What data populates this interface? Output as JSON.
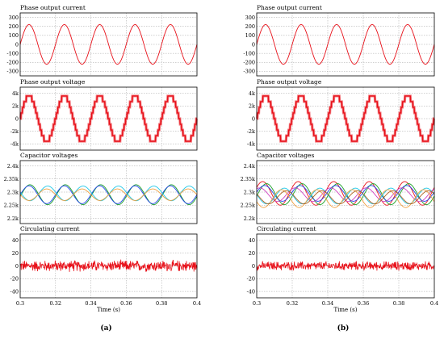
{
  "figure": {
    "panel_labels": [
      "(a)",
      "(b)"
    ],
    "xlabel": "Time (s)"
  },
  "colors": {
    "frame": "#000000",
    "grid": "#a0a0a0",
    "red": "#e8111a",
    "green": "#1aa025",
    "blue": "#2244ee",
    "cyan": "#20c8e8",
    "orange": "#f0a040",
    "brown": "#b06020",
    "magenta": "#d040c0"
  },
  "chart_data": [
    {
      "type": "line",
      "panel": "(a)",
      "title": "Phase output current",
      "xlim": [
        0.3,
        0.4
      ],
      "ylim": [
        -350,
        350
      ],
      "yticks": [
        300,
        200,
        100,
        0,
        -100,
        -200,
        -300
      ],
      "ytick_labels": [
        "300",
        "200",
        "100",
        "0",
        "-100",
        "-200",
        "-300"
      ],
      "series": [
        {
          "color": "red",
          "waveform": "sine",
          "amplitude": 220,
          "offset": 0,
          "frequency_hz": 50,
          "phase_deg": 0
        }
      ]
    },
    {
      "type": "line",
      "panel": "(a)",
      "title": "Phase output voltage",
      "xlim": [
        0.3,
        0.4
      ],
      "ylim": [
        -5000,
        5000
      ],
      "yticks": [
        4000,
        2000,
        0,
        -2000,
        -4000
      ],
      "ytick_labels": [
        "4k",
        "2k",
        "0",
        "-2k",
        "-4k"
      ],
      "series": [
        {
          "color": "red",
          "waveform": "multilevel",
          "amplitude": 3600,
          "levels": 9,
          "frequency_hz": 50,
          "phase_deg": 0
        }
      ]
    },
    {
      "type": "line",
      "panel": "(a)",
      "title": "Capacitor voltages",
      "xlim": [
        0.3,
        0.4
      ],
      "ylim": [
        2180,
        2420
      ],
      "yticks": [
        2400,
        2350,
        2300,
        2250,
        2200
      ],
      "ytick_labels": [
        "2.4k",
        "2.35k",
        "2.3k",
        "2.25k",
        "2.2k"
      ],
      "series": [
        {
          "color": "green",
          "waveform": "sine",
          "offset": 2290,
          "amplitude": 38,
          "frequency_hz": 50,
          "phase_deg": -10
        },
        {
          "color": "blue",
          "waveform": "sine",
          "offset": 2290,
          "amplitude": 34,
          "frequency_hz": 50,
          "phase_deg": 0
        },
        {
          "color": "cyan",
          "waveform": "sine",
          "offset": 2295,
          "amplitude": 28,
          "frequency_hz": 50,
          "phase_deg": 170
        },
        {
          "color": "orange",
          "waveform": "sine",
          "offset": 2290,
          "amplitude": 22,
          "frequency_hz": 50,
          "phase_deg": 180
        }
      ]
    },
    {
      "type": "line",
      "panel": "(a)",
      "title": "Circulating current",
      "xlim": [
        0.3,
        0.4
      ],
      "ylim": [
        -50,
        50
      ],
      "yticks": [
        40,
        20,
        0,
        -20,
        -40
      ],
      "ytick_labels": [
        "40",
        "20",
        "0",
        "-20",
        "-40"
      ],
      "series": [
        {
          "color": "red",
          "waveform": "noise",
          "offset": 0,
          "amplitude": 10
        }
      ]
    },
    {
      "type": "line",
      "panel": "(b)",
      "title": "Phase output current",
      "xlim": [
        0.3,
        0.4
      ],
      "ylim": [
        -350,
        350
      ],
      "yticks": [
        300,
        200,
        100,
        0,
        -100,
        -200,
        -300
      ],
      "ytick_labels": [
        "300",
        "200",
        "100",
        "0",
        "-100",
        "-200",
        "-300"
      ],
      "series": [
        {
          "color": "red",
          "waveform": "sine",
          "amplitude": 220,
          "offset": 0,
          "frequency_hz": 50,
          "phase_deg": 0
        }
      ]
    },
    {
      "type": "line",
      "panel": "(b)",
      "title": "Phase output voltage",
      "xlim": [
        0.3,
        0.4
      ],
      "ylim": [
        -5000,
        5000
      ],
      "yticks": [
        4000,
        2000,
        0,
        -2000,
        -4000
      ],
      "ytick_labels": [
        "4k",
        "2k",
        "0",
        "-2k",
        "-4k"
      ],
      "series": [
        {
          "color": "red",
          "waveform": "multilevel",
          "amplitude": 3600,
          "levels": 9,
          "frequency_hz": 50,
          "phase_deg": 0
        }
      ]
    },
    {
      "type": "line",
      "panel": "(b)",
      "title": "Capacitor voltages",
      "xlim": [
        0.3,
        0.4
      ],
      "ylim": [
        2180,
        2420
      ],
      "yticks": [
        2400,
        2350,
        2300,
        2250,
        2200
      ],
      "ytick_labels": [
        "2.4k",
        "2.35k",
        "2.3k",
        "2.25k",
        "2.2k"
      ],
      "series": [
        {
          "color": "red",
          "waveform": "sine",
          "offset": 2295,
          "amplitude": 45,
          "frequency_hz": 50,
          "phase_deg": 30
        },
        {
          "color": "green",
          "waveform": "sine",
          "offset": 2292,
          "amplitude": 40,
          "frequency_hz": 50,
          "phase_deg": -10
        },
        {
          "color": "blue",
          "waveform": "sine",
          "offset": 2295,
          "amplitude": 30,
          "frequency_hz": 50,
          "phase_deg": 10
        },
        {
          "color": "magenta",
          "waveform": "sine",
          "offset": 2290,
          "amplitude": 26,
          "frequency_hz": 50,
          "phase_deg": 60
        },
        {
          "color": "cyan",
          "waveform": "sine",
          "offset": 2285,
          "amplitude": 30,
          "frequency_hz": 50,
          "phase_deg": 170
        },
        {
          "color": "orange",
          "waveform": "sine",
          "offset": 2275,
          "amplitude": 34,
          "frequency_hz": 50,
          "phase_deg": 200
        },
        {
          "color": "brown",
          "waveform": "sine",
          "offset": 2280,
          "amplitude": 25,
          "frequency_hz": 50,
          "phase_deg": 150
        }
      ]
    },
    {
      "type": "line",
      "panel": "(b)",
      "title": "Circulating current",
      "xlim": [
        0.3,
        0.4
      ],
      "ylim": [
        -50,
        50
      ],
      "yticks": [
        40,
        20,
        0,
        -20,
        -40
      ],
      "ytick_labels": [
        "40",
        "20",
        "0",
        "-20",
        "-40"
      ],
      "series": [
        {
          "color": "red",
          "waveform": "noise",
          "offset": 0,
          "amplitude": 8
        }
      ]
    }
  ],
  "x_ticks": [
    0.3,
    0.32,
    0.34,
    0.36,
    0.38,
    0.4
  ],
  "x_tick_labels": [
    "0.3",
    "0.32",
    "0.34",
    "0.36",
    "0.38",
    "0.4"
  ]
}
